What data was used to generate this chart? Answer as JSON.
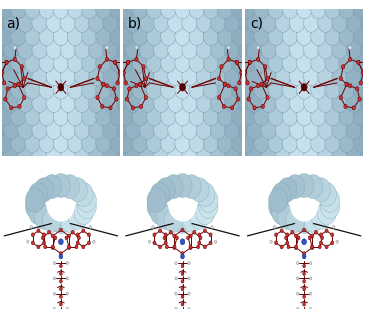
{
  "figsize": [
    3.65,
    3.11
  ],
  "dpi": 100,
  "background_color": "#ffffff",
  "label_a": "a)",
  "label_b": "b)",
  "label_c": "c)",
  "label_fontsize": 10,
  "label_color": "#000000",
  "swnt_bg_color": "#b5cdd6",
  "swnt_light": "#d0e4ea",
  "swnt_dark": "#8aacb8",
  "swnt_edge": "#6a8fa0",
  "mol_dark": "#6b0000",
  "mol_mid": "#aa1111",
  "mol_light": "#cc3333",
  "white_atom": "#e8e8f0",
  "blue_atom": "#3355bb",
  "ring_bg": "#ffffff",
  "bump_light": "#cfe0e8",
  "bump_mid": "#a8c4ce",
  "bump_dark": "#7ca0b0"
}
